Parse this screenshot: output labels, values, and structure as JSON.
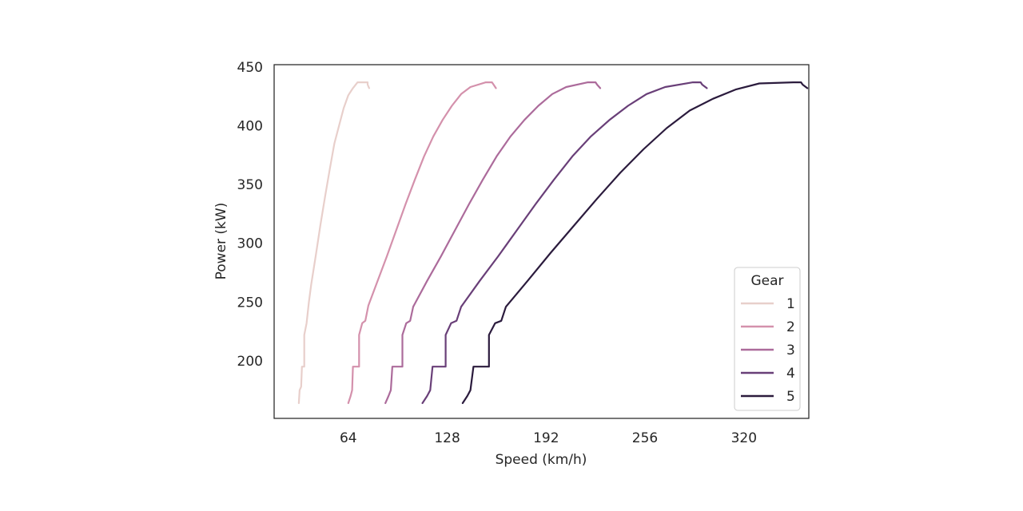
{
  "chart_data": {
    "type": "line",
    "xlabel": "Speed (km/h)",
    "ylabel": "Power (kW)",
    "xlim": [
      16,
      362
    ],
    "ylim": [
      151,
      452
    ],
    "xticks": [
      64,
      128,
      192,
      256,
      320
    ],
    "yticks": [
      200,
      250,
      300,
      350,
      400,
      450
    ],
    "grid": false,
    "legend": {
      "title": "Gear",
      "placement": "bottom-right"
    },
    "series": [
      {
        "name": "1",
        "color": "#e8cfcb",
        "x": [
          32.0,
          32.5,
          33.5,
          34.0,
          35.5,
          35.5,
          37.0,
          38.5,
          40.0,
          43.0,
          46.0,
          49.0,
          52.0,
          55.0,
          58.0,
          61.0,
          64.0,
          67.0,
          70.0,
          74.0,
          76.5,
          76.5,
          77.5
        ],
        "y": [
          164,
          175,
          178,
          195,
          195,
          222,
          232,
          250,
          265,
          290,
          316,
          340,
          363,
          385,
          400,
          415,
          426,
          432,
          437,
          437,
          437,
          435,
          432
        ]
      },
      {
        "name": "2",
        "color": "#d491ac",
        "x": [
          64.0,
          65.5,
          66.5,
          67.0,
          71.0,
          71.0,
          73.0,
          75.0,
          77.0,
          83.0,
          89.0,
          95.0,
          101.0,
          107.0,
          113.0,
          119.0,
          125.0,
          131.0,
          137.0,
          143.0,
          153.0,
          157.0,
          158.0,
          159.5
        ],
        "y": [
          164,
          170,
          175,
          195,
          195,
          222,
          232,
          234,
          247,
          268,
          289,
          311,
          333,
          354,
          374,
          391,
          405,
          417,
          427,
          433,
          437,
          437,
          435,
          432
        ]
      },
      {
        "name": "3",
        "color": "#ac6b9b",
        "x": [
          88.0,
          90.0,
          91.5,
          92.5,
          99.0,
          99.0,
          101.5,
          104.0,
          106.0,
          115.0,
          124.0,
          133.0,
          142.0,
          151.0,
          160.0,
          169.0,
          178.0,
          187.0,
          196.0,
          205.0,
          219.0,
          224.0,
          225.0,
          227.0
        ],
        "y": [
          164,
          170,
          175,
          195,
          195,
          222,
          232,
          234,
          246,
          268,
          289,
          311,
          333,
          354,
          374,
          391,
          405,
          417,
          427,
          433,
          437,
          437,
          435,
          432
        ]
      },
      {
        "name": "4",
        "color": "#693f78",
        "x": [
          112.0,
          115.0,
          117.0,
          118.5,
          127.0,
          127.0,
          130.5,
          134.0,
          137.0,
          149.0,
          161.0,
          173.0,
          185.0,
          197.0,
          209.0,
          221.0,
          233.0,
          245.0,
          257.0,
          269.0,
          287.0,
          292.0,
          293.0,
          296.0
        ],
        "y": [
          164,
          170,
          175,
          195,
          195,
          222,
          232,
          234,
          246,
          268,
          289,
          311,
          333,
          354,
          374,
          391,
          405,
          417,
          427,
          433,
          437,
          437,
          435,
          432
        ]
      },
      {
        "name": "5",
        "color": "#2b1b3d",
        "x": [
          138.0,
          141.0,
          143.0,
          145.0,
          155.0,
          155.0,
          159.0,
          163.0,
          166.0,
          180.0,
          195.0,
          210.0,
          225.0,
          240.0,
          255.0,
          270.0,
          285.0,
          300.0,
          315.0,
          330.0,
          352.0,
          357.0,
          358.0,
          361.0
        ],
        "y": [
          164,
          170,
          175,
          195,
          195,
          222,
          232,
          234,
          246,
          268,
          292,
          315,
          338,
          360,
          380,
          398,
          413,
          423,
          431,
          436,
          437,
          437,
          435,
          432
        ]
      }
    ]
  }
}
